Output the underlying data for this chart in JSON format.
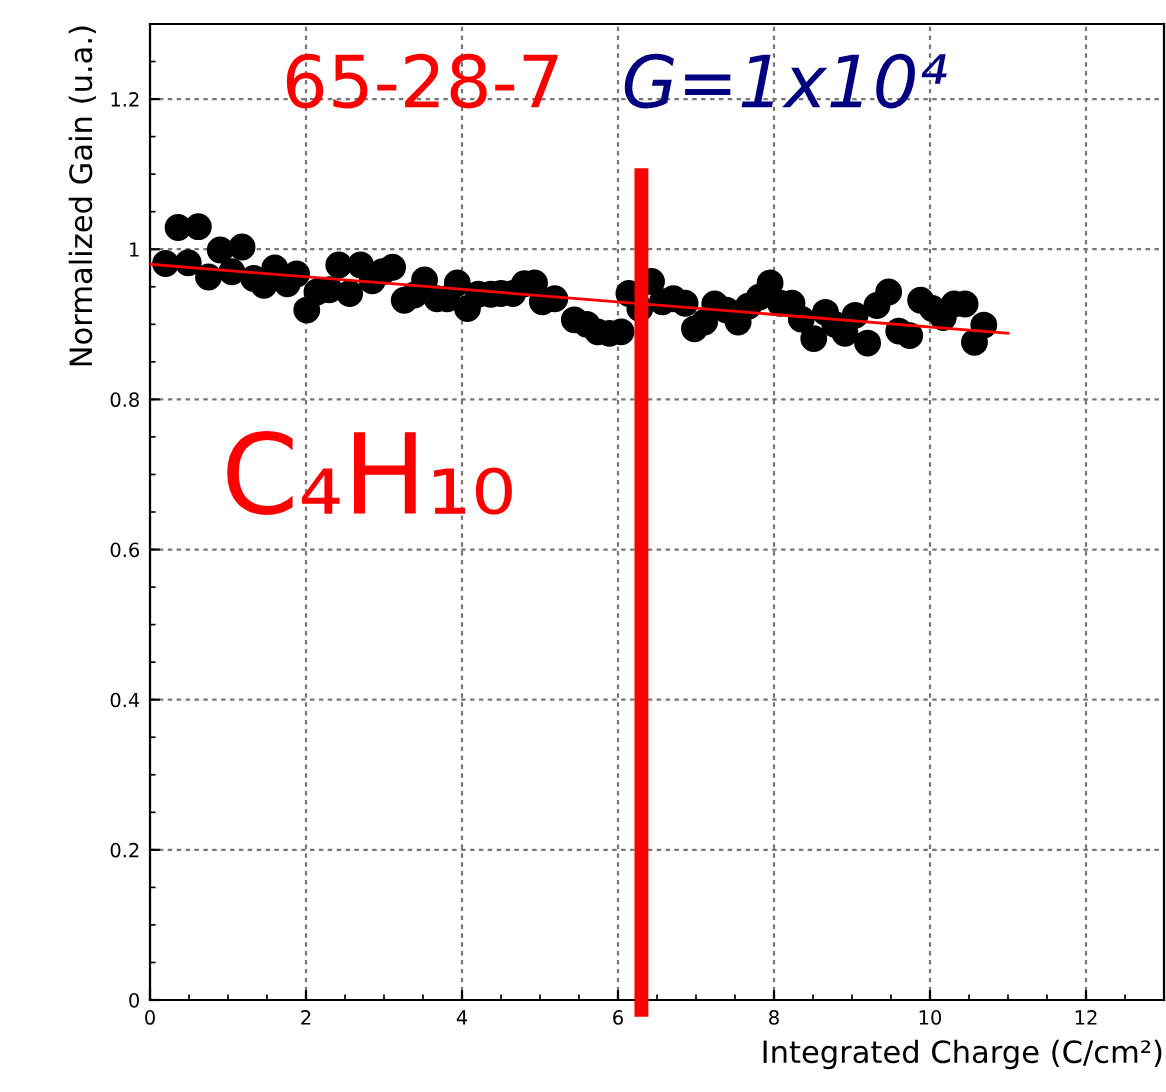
{
  "chart_data": {
    "type": "scatter",
    "xlabel": "Integrated Charge (C/cm²)",
    "ylabel": "Normalized Gain (u.a.)",
    "xlim": [
      0,
      13
    ],
    "ylim": [
      0,
      1.3
    ],
    "xticks": [
      0,
      2,
      4,
      6,
      8,
      10,
      12
    ],
    "yticks": [
      0,
      0.2,
      0.4,
      0.6,
      0.8,
      1,
      1.2
    ],
    "grid": true,
    "series": [
      {
        "marker": "circle",
        "color": "#000000",
        "x": [
          0.2,
          0.36,
          0.49,
          0.62,
          0.75,
          0.9,
          1.05,
          1.18,
          1.33,
          1.46,
          1.6,
          1.76,
          1.88,
          2.01,
          2.14,
          2.3,
          2.42,
          2.56,
          2.7,
          2.85,
          2.98,
          3.11,
          3.26,
          3.39,
          3.52,
          3.68,
          3.81,
          3.94,
          4.07,
          4.21,
          4.37,
          4.5,
          4.65,
          4.8,
          4.93,
          5.03,
          5.19,
          5.44,
          5.6,
          5.74,
          5.89,
          6.04,
          6.14,
          6.28,
          6.43,
          6.57,
          6.71,
          6.86,
          6.98,
          7.11,
          7.24,
          7.39,
          7.54,
          7.67,
          7.81,
          7.95,
          8.08,
          8.23,
          8.35,
          8.51,
          8.66,
          8.78,
          8.91,
          9.04,
          9.2,
          9.32,
          9.47,
          9.6,
          9.74,
          9.88,
          10.03,
          10.17,
          10.31,
          10.45,
          10.57,
          10.69
        ],
        "values": [
          0.981,
          1.029,
          0.982,
          1.03,
          0.963,
          0.999,
          0.97,
          1.003,
          0.961,
          0.952,
          0.975,
          0.954,
          0.967,
          0.919,
          0.943,
          0.946,
          0.979,
          0.941,
          0.979,
          0.958,
          0.97,
          0.976,
          0.932,
          0.939,
          0.959,
          0.934,
          0.934,
          0.955,
          0.921,
          0.94,
          0.94,
          0.941,
          0.941,
          0.954,
          0.955,
          0.93,
          0.934,
          0.906,
          0.9,
          0.89,
          0.888,
          0.89,
          0.941,
          0.921,
          0.957,
          0.93,
          0.934,
          0.928,
          0.894,
          0.903,
          0.927,
          0.919,
          0.903,
          0.924,
          0.936,
          0.955,
          0.928,
          0.928,
          0.907,
          0.881,
          0.916,
          0.9,
          0.888,
          0.912,
          0.875,
          0.925,
          0.943,
          0.891,
          0.885,
          0.932,
          0.921,
          0.909,
          0.927,
          0.927,
          0.876,
          0.899
        ]
      },
      {
        "type": "line",
        "color": "#ff0000",
        "x": [
          0,
          11
        ],
        "values": [
          0.98,
          0.888
        ]
      }
    ],
    "ref_lines": [
      {
        "axis": "x",
        "value": 6.3,
        "color": "#ff0000"
      }
    ],
    "annotations": [
      "65-28-7",
      "G=1x10⁴",
      "C₄H₁₀"
    ]
  }
}
